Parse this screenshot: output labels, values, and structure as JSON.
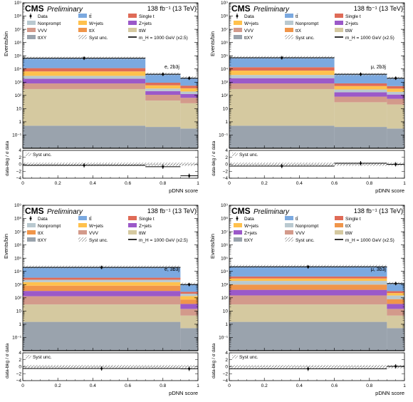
{
  "colors": {
    "tt": "#7ba9e0",
    "singlet": "#df6b57",
    "nonprompt": "#b9c9d0",
    "wjets": "#ffc14d",
    "zjets": "#9b59c9",
    "vvv": "#d39a8b",
    "ttx": "#f0954a",
    "ttw": "#d5c9a0",
    "ttxy": "#9aa3ad",
    "hatch": "#9a9a9a"
  },
  "chart_data": [
    {
      "type": "bar",
      "cms": "CMS",
      "preliminary": "Preliminary",
      "lumi": "138 fb⁻¹ (13 TeV)",
      "channel": "e, 2b3j",
      "ylabel": "Events/bin",
      "xlabel": "pDNN score",
      "ratio_ylabel": "data-bkg / σ data",
      "syst_label": "Syst unc.",
      "ylim": [
        0.01,
        1000000000
      ],
      "ratio_ylim": [
        -4,
        4
      ],
      "xlim": [
        0,
        1
      ],
      "x_ticks": [
        "0",
        "0.2",
        "0.4",
        "0.6",
        "0.8",
        "1"
      ],
      "y_ticks": [
        "10⁻¹",
        "1",
        "10",
        "10²",
        "10³",
        "10⁴",
        "10⁵",
        "10⁶",
        "10⁷",
        "10⁸",
        "10⁹"
      ],
      "ratio_ticks": [
        "−4",
        "−2",
        "0",
        "2",
        "4"
      ],
      "legend": [
        "Data",
        "tt̄",
        "Single t",
        "Nonprompt",
        "W+jets",
        "Z+jets",
        "VVV",
        "ttX",
        "ttW",
        "ttXY",
        "Syst unc.",
        "m_H = 1000 GeV (x2.5)"
      ],
      "bins": [
        0,
        0.7,
        0.9,
        1.0
      ],
      "stack": [
        {
          "key": "ttxy",
          "values": [
            0.5,
            0.4,
            0.3
          ]
        },
        {
          "key": "ttw",
          "values": [
            300,
            40,
            25
          ]
        },
        {
          "key": "vvv",
          "values": [
            500,
            70,
            40
          ]
        },
        {
          "key": "zjets",
          "values": [
            1000,
            100,
            60
          ]
        },
        {
          "key": "nonprompt",
          "values": [
            1200,
            120,
            70
          ]
        },
        {
          "key": "wjets",
          "values": [
            3500,
            250,
            150
          ]
        },
        {
          "key": "singlet",
          "values": [
            5000,
            330,
            200
          ]
        },
        {
          "key": "tt",
          "values": [
            55000,
            3200,
            1600
          ]
        }
      ],
      "data_values": [
        65000,
        4000,
        2000
      ],
      "signal_values": [
        0,
        0,
        0
      ],
      "ratio_values": [
        -0.3,
        -0.7,
        -3.3
      ],
      "ratio_xerr": [
        0.35,
        0.1,
        0.05
      ]
    },
    {
      "type": "bar",
      "cms": "CMS",
      "preliminary": "Preliminary",
      "lumi": "138 fb⁻¹ (13 TeV)",
      "channel": "μ, 2b3j",
      "ylabel": "Events/bin",
      "xlabel": "pDNN score",
      "ratio_ylabel": "data-bkg / σ data",
      "syst_label": "Syst unc.",
      "ylim": [
        0.01,
        1000000000
      ],
      "ratio_ylim": [
        -4,
        4
      ],
      "xlim": [
        0,
        1
      ],
      "x_ticks": [
        "0",
        "0.2",
        "0.4",
        "0.6",
        "0.8",
        "1"
      ],
      "y_ticks": [
        "10⁻¹",
        "1",
        "10",
        "10²",
        "10³",
        "10⁴",
        "10⁵",
        "10⁶",
        "10⁷",
        "10⁸",
        "10⁹"
      ],
      "ratio_ticks": [
        "−4",
        "−2",
        "0",
        "2",
        "4"
      ],
      "legend": [
        "Data",
        "tt̄",
        "Single t",
        "W+jets",
        "Nonprompt",
        "Z+jets",
        "VVV",
        "ttX",
        "ttW",
        "ttXY",
        "Syst unc.",
        "m_H = 1000 GeV (x2.5)"
      ],
      "bins": [
        0,
        0.6,
        0.9,
        1.0
      ],
      "stack": [
        {
          "key": "ttxy",
          "values": [
            0.5,
            0.4,
            0.3
          ]
        },
        {
          "key": "ttw",
          "values": [
            300,
            30,
            20
          ]
        },
        {
          "key": "vvv",
          "values": [
            500,
            50,
            35
          ]
        },
        {
          "key": "zjets",
          "values": [
            1200,
            90,
            60
          ]
        },
        {
          "key": "nonprompt",
          "values": [
            1500,
            110,
            70
          ]
        },
        {
          "key": "wjets",
          "values": [
            4000,
            230,
            140
          ]
        },
        {
          "key": "singlet",
          "values": [
            6000,
            300,
            180
          ]
        },
        {
          "key": "tt",
          "values": [
            60000,
            3000,
            1500
          ]
        }
      ],
      "data_values": [
        70000,
        4000,
        2000
      ],
      "signal_values": [
        0,
        0,
        0
      ],
      "ratio_values": [
        -0.5,
        0.3,
        0.0
      ],
      "ratio_xerr": [
        0.3,
        0.15,
        0.05
      ]
    },
    {
      "type": "bar",
      "cms": "CMS",
      "preliminary": "Preliminary",
      "lumi": "138 fb⁻¹ (13 TeV)",
      "channel": "e, 3b3j",
      "ylabel": "Events/bin",
      "xlabel": "pDNN score",
      "ratio_ylabel": "data-bkg / σ data",
      "syst_label": "Syst unc.",
      "ylim": [
        0.01,
        1000000000
      ],
      "ratio_ylim": [
        -4,
        4
      ],
      "xlim": [
        0,
        1
      ],
      "x_ticks": [
        "0",
        "0.2",
        "0.4",
        "0.6",
        "0.8",
        "1"
      ],
      "y_ticks": [
        "10⁻¹",
        "1",
        "10",
        "10²",
        "10³",
        "10⁴",
        "10⁵",
        "10⁶",
        "10⁷",
        "10⁸",
        "10⁹"
      ],
      "ratio_ticks": [
        "−4",
        "−2",
        "0",
        "2",
        "4"
      ],
      "legend": [
        "Data",
        "tt̄",
        "Single t",
        "Nonprompt",
        "W+jets",
        "Z+jets",
        "ttX",
        "VVV",
        "ttW",
        "ttXY",
        "Syst unc.",
        "m_H = 1000 GeV (x2.5)"
      ],
      "bins": [
        0,
        0.9,
        1.0
      ],
      "stack": [
        {
          "key": "ttxy",
          "values": [
            1.5,
            0.5
          ]
        },
        {
          "key": "ttw",
          "values": [
            30,
            4
          ]
        },
        {
          "key": "vvv",
          "values": [
            100,
            10
          ]
        },
        {
          "key": "zjets",
          "values": [
            200,
            20
          ]
        },
        {
          "key": "ttx",
          "values": [
            500,
            40
          ]
        },
        {
          "key": "wjets",
          "values": [
            700,
            60
          ]
        },
        {
          "key": "nonprompt",
          "values": [
            800,
            70
          ]
        },
        {
          "key": "singlet",
          "values": [
            1000,
            80
          ]
        },
        {
          "key": "tt",
          "values": [
            18000,
            800
          ]
        }
      ],
      "data_values": [
        20000,
        1000
      ],
      "signal_values": [
        0,
        0
      ],
      "ratio_values": [
        -0.5,
        -0.6
      ],
      "ratio_xerr": [
        0.45,
        0.05
      ]
    },
    {
      "type": "bar",
      "cms": "CMS",
      "preliminary": "Preliminary",
      "lumi": "138 fb⁻¹ (13 TeV)",
      "channel": "μ, 3b3j",
      "ylabel": "Events/bin",
      "xlabel": "pDNN score",
      "ratio_ylabel": "data-bkg / σ data",
      "syst_label": "Syst unc.",
      "ylim": [
        0.01,
        1000000000
      ],
      "ratio_ylim": [
        -4,
        4
      ],
      "xlim": [
        0,
        1
      ],
      "x_ticks": [
        "0",
        "0.2",
        "0.4",
        "0.6",
        "0.8",
        "1"
      ],
      "y_ticks": [
        "10⁻¹",
        "1",
        "10",
        "10²",
        "10³",
        "10⁴",
        "10⁵",
        "10⁶",
        "10⁷",
        "10⁸",
        "10⁹"
      ],
      "ratio_ticks": [
        "−4",
        "−2",
        "0",
        "2",
        "4"
      ],
      "legend": [
        "Data",
        "tt̄",
        "Single t",
        "W+jets",
        "Nonprompt",
        "ttX",
        "Z+jets",
        "VVV",
        "ttW",
        "ttXY",
        "Syst unc.",
        "m_H = 1000 GeV (x2.5)"
      ],
      "bins": [
        0,
        0.9,
        1.0
      ],
      "stack": [
        {
          "key": "ttxy",
          "values": [
            1.5,
            0.5
          ]
        },
        {
          "key": "ttw",
          "values": [
            30,
            4
          ]
        },
        {
          "key": "vvv",
          "values": [
            120,
            10
          ]
        },
        {
          "key": "zjets",
          "values": [
            250,
            20
          ]
        },
        {
          "key": "ttx",
          "values": [
            600,
            45
          ]
        },
        {
          "key": "nonprompt",
          "values": [
            900,
            70
          ]
        },
        {
          "key": "wjets",
          "values": [
            1000,
            80
          ]
        },
        {
          "key": "singlet",
          "values": [
            1200,
            90
          ]
        },
        {
          "key": "tt",
          "values": [
            20000,
            900
          ]
        }
      ],
      "data_values": [
        22000,
        1200
      ],
      "signal_values": [
        0,
        0
      ],
      "ratio_values": [
        -0.6,
        0.1
      ],
      "ratio_xerr": [
        0.45,
        0.05
      ]
    }
  ]
}
